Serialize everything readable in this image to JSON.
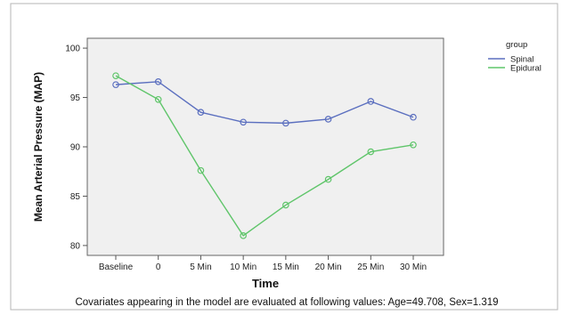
{
  "chart_data": {
    "type": "line",
    "xlabel": "Time",
    "ylabel": "Mean Arterial Pressure (MAP)",
    "categories": [
      "Baseline",
      "0",
      "5 Min",
      "10 Min",
      "15 Min",
      "20 Min",
      "25 Min",
      "30 Min"
    ],
    "ylim": [
      79,
      101
    ],
    "yticks": [
      80,
      85,
      90,
      95,
      100
    ],
    "grid": false,
    "legend": {
      "title": "group",
      "position": "top-right"
    },
    "series": [
      {
        "name": "Spinal",
        "color": "#5b6fbf",
        "values": [
          96.3,
          96.6,
          93.5,
          92.5,
          92.4,
          92.8,
          94.6,
          93.0
        ]
      },
      {
        "name": "Epidural",
        "color": "#5fc56a",
        "values": [
          97.2,
          94.8,
          87.6,
          81.0,
          84.1,
          86.7,
          89.5,
          90.2
        ]
      }
    ],
    "footnote": "Covariates appearing in the model are evaluated at following values: Age=49.708, Sex=1.319"
  }
}
